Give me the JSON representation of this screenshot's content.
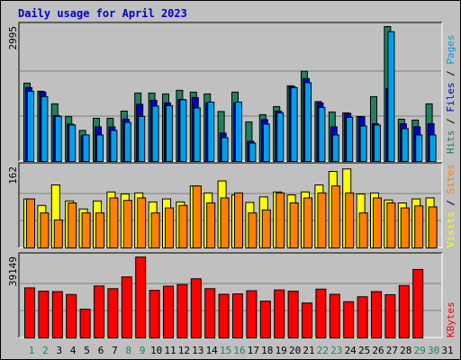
{
  "title": "Daily usage for April 2023",
  "colors": {
    "hits": "#208060",
    "files": "#0000c8",
    "pages": "#00a0e8",
    "visits": "#ffff00",
    "sites": "#ff8000",
    "kbytes": "#ff0000",
    "background": "#c0c0c0",
    "weekend_label": "#208060",
    "weekday_label": "#000000"
  },
  "chart_data": [
    {
      "type": "bar",
      "categories": [
        "1",
        "2",
        "3",
        "4",
        "5",
        "6",
        "7",
        "8",
        "9",
        "10",
        "11",
        "12",
        "13",
        "14",
        "15",
        "16",
        "17",
        "18",
        "19",
        "20",
        "21",
        "22",
        "23",
        "24",
        "25",
        "26",
        "27",
        "28",
        "29",
        "30",
        "31"
      ],
      "weekend_days": [
        "1",
        "2",
        "8",
        "9",
        "15",
        "16",
        "22",
        "23",
        "29",
        "30"
      ],
      "ymax_label": "2995",
      "ylim": [
        0,
        2995
      ],
      "series": [
        {
          "name": "Hits",
          "values": [
            1740,
            1560,
            1280,
            1000,
            690,
            960,
            960,
            1120,
            1520,
            1520,
            1500,
            1580,
            1540,
            1500,
            1110,
            1540,
            880,
            1040,
            1220,
            1680,
            2005,
            1330,
            1100,
            1080,
            1000,
            1440,
            2995,
            940,
            920,
            1280,
            0
          ]
        },
        {
          "name": "Files",
          "values": [
            1640,
            1540,
            1020,
            830,
            570,
            770,
            770,
            940,
            1270,
            1360,
            1300,
            1380,
            1420,
            1300,
            630,
            1300,
            450,
            930,
            1120,
            1660,
            1840,
            1300,
            770,
            1070,
            990,
            840,
            1620,
            840,
            770,
            840,
            0
          ]
        },
        {
          "name": "Pages",
          "values": [
            1560,
            1440,
            1000,
            810,
            590,
            590,
            690,
            870,
            1000,
            1230,
            1240,
            1370,
            1190,
            1320,
            530,
            1320,
            410,
            830,
            1080,
            1640,
            1750,
            1200,
            590,
            980,
            790,
            810,
            2880,
            730,
            590,
            590,
            0
          ]
        }
      ]
    },
    {
      "type": "bar",
      "categories": [
        "1",
        "2",
        "3",
        "4",
        "5",
        "6",
        "7",
        "8",
        "9",
        "10",
        "11",
        "12",
        "13",
        "14",
        "15",
        "16",
        "17",
        "18",
        "19",
        "20",
        "21",
        "22",
        "23",
        "24",
        "25",
        "26",
        "27",
        "28",
        "29",
        "30",
        "31"
      ],
      "ymax_label": "162",
      "ylim": [
        0,
        162
      ],
      "series": [
        {
          "name": "Visits",
          "values": [
            98,
            85,
            126,
            94,
            78,
            94,
            112,
            108,
            110,
            92,
            98,
            92,
            124,
            110,
            134,
            106,
            91,
            102,
            112,
            106,
            112,
            126,
            153,
            158,
            108,
            110,
            96,
            90,
            98,
            100,
            0
          ]
        },
        {
          "name": "Sites",
          "values": [
            98,
            70,
            56,
            90,
            70,
            70,
            100,
            95,
            100,
            70,
            80,
            85,
            124,
            90,
            100,
            110,
            70,
            76,
            110,
            90,
            100,
            110,
            124,
            110,
            70,
            100,
            90,
            80,
            84,
            82,
            0
          ]
        }
      ]
    },
    {
      "type": "bar",
      "categories": [
        "1",
        "2",
        "3",
        "4",
        "5",
        "6",
        "7",
        "8",
        "9",
        "10",
        "11",
        "12",
        "13",
        "14",
        "15",
        "16",
        "17",
        "18",
        "19",
        "20",
        "21",
        "22",
        "23",
        "24",
        "25",
        "26",
        "27",
        "28",
        "29",
        "30",
        "31"
      ],
      "ymax_label": "39149",
      "ylim": [
        0,
        39149
      ],
      "series": [
        {
          "name": "KBytes",
          "values": [
            24200,
            22600,
            22400,
            21000,
            13900,
            25100,
            23800,
            29500,
            39100,
            23000,
            25000,
            25800,
            28600,
            23800,
            21100,
            21300,
            22800,
            17800,
            23200,
            22600,
            16900,
            23600,
            21100,
            17500,
            19900,
            22400,
            20900,
            25300,
            33100,
            0,
            0
          ]
        }
      ]
    }
  ],
  "legends": {
    "top": [
      {
        "text": "Hits",
        "color_key": "hits"
      },
      {
        "text": "Files",
        "color_key": "files"
      },
      {
        "text": "Pages",
        "color_key": "pages"
      }
    ],
    "middle": [
      {
        "text": "Visits",
        "color_key": "visits"
      },
      {
        "text": "Sites",
        "color_key": "sites"
      }
    ],
    "bottom": [
      {
        "text": "KBytes",
        "color_key": "kbytes"
      }
    ],
    "separator": "/"
  }
}
